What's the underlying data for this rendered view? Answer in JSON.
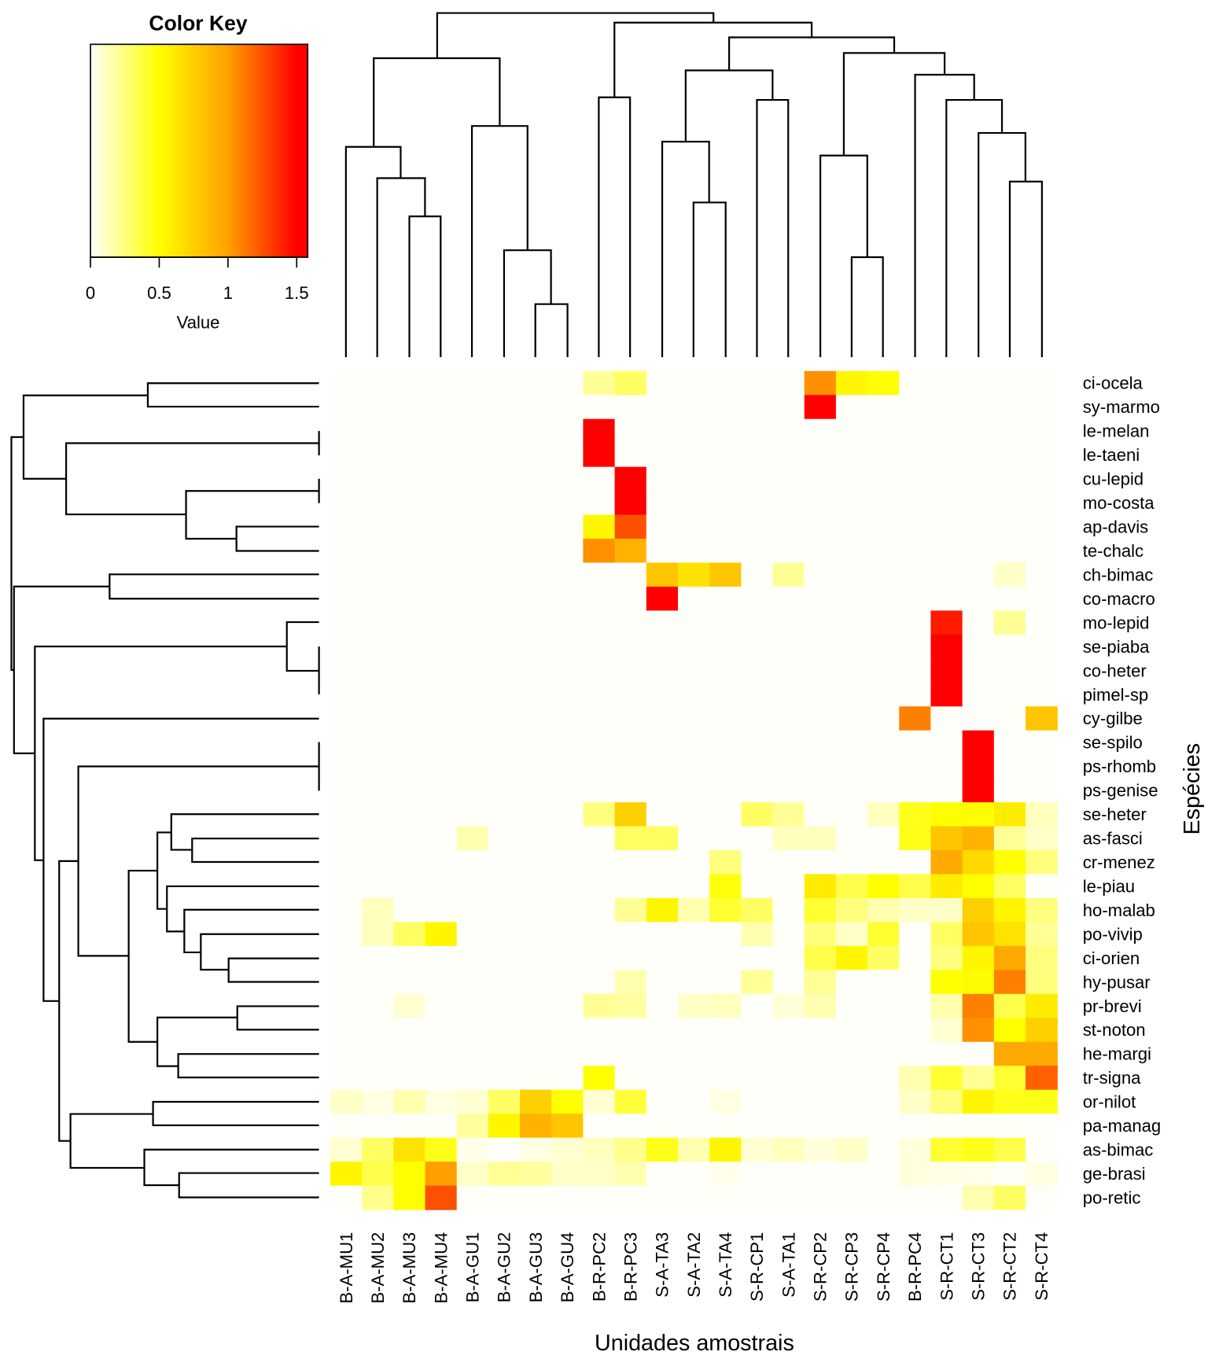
{
  "chart_data": {
    "type": "heatmap",
    "title": "",
    "xlabel": "Unidades amostrais",
    "ylabel": "Espécies",
    "columns": [
      "B-A-MU1",
      "B-A-MU2",
      "B-A-MU3",
      "B-A-MU4",
      "B-A-GU1",
      "B-A-GU2",
      "B-A-GU3",
      "B-A-GU4",
      "B-R-PC2",
      "B-R-PC3",
      "S-A-TA3",
      "S-A-TA2",
      "S-A-TA4",
      "S-R-CP1",
      "S-A-TA1",
      "S-R-CP2",
      "S-R-CP3",
      "S-R-CP4",
      "B-R-PC4",
      "S-R-CT1",
      "S-R-CT3",
      "S-R-CT2",
      "S-R-CT4"
    ],
    "rows": [
      "ci-ocela",
      "sy-marmo",
      "le-melan",
      "le-taeni",
      "cu-lepid",
      "mo-costa",
      "ap-davis",
      "te-chalc",
      "ch-bimac",
      "co-macro",
      "mo-lepid",
      "se-piaba",
      "co-heter",
      "pimel-sp",
      "cy-gilbe",
      "se-spilo",
      "ps-rhomb",
      "ps-genise",
      "se-heter",
      "as-fasci",
      "cr-menez",
      "le-piau",
      "ho-malab",
      "po-vivip",
      "ci-orien",
      "hy-pusar",
      "pr-brevi",
      "st-noton",
      "he-margi",
      "tr-signa",
      "or-nilot",
      "pa-manag",
      "as-bimac",
      "ge-brasi",
      "po-retic"
    ],
    "values": [
      [
        0,
        0,
        0,
        0,
        0,
        0,
        0,
        0,
        0.2,
        0.3,
        0,
        0,
        0,
        0,
        0,
        1.05,
        0.55,
        0.5,
        0,
        0,
        0,
        0,
        0
      ],
      [
        0,
        0,
        0,
        0,
        0,
        0,
        0,
        0,
        0,
        0,
        0,
        0,
        0,
        0,
        0,
        1.5,
        0,
        0,
        0,
        0,
        0,
        0,
        0
      ],
      [
        0,
        0,
        0,
        0,
        0,
        0,
        0,
        0,
        1.5,
        0,
        0,
        0,
        0,
        0,
        0,
        0,
        0,
        0,
        0,
        0,
        0,
        0,
        0
      ],
      [
        0,
        0,
        0,
        0,
        0,
        0,
        0,
        0,
        1.5,
        0,
        0,
        0,
        0,
        0,
        0,
        0,
        0,
        0,
        0,
        0,
        0,
        0,
        0
      ],
      [
        0,
        0,
        0,
        0,
        0,
        0,
        0,
        0,
        0,
        1.5,
        0,
        0,
        0,
        0,
        0,
        0,
        0,
        0,
        0,
        0,
        0,
        0,
        0
      ],
      [
        0,
        0,
        0,
        0,
        0,
        0,
        0,
        0,
        0,
        1.5,
        0,
        0,
        0,
        0,
        0,
        0,
        0,
        0,
        0,
        0,
        0,
        0,
        0
      ],
      [
        0,
        0,
        0,
        0,
        0,
        0,
        0,
        0,
        0.55,
        1.25,
        0,
        0,
        0,
        0,
        0,
        0,
        0,
        0,
        0,
        0,
        0,
        0,
        0
      ],
      [
        0,
        0,
        0,
        0,
        0,
        0,
        0,
        0,
        1.05,
        0.9,
        0,
        0,
        0,
        0,
        0,
        0,
        0,
        0,
        0,
        0,
        0,
        0,
        0
      ],
      [
        0,
        0,
        0,
        0,
        0,
        0,
        0,
        0,
        0,
        0,
        0.8,
        0.65,
        0.8,
        0,
        0.2,
        0,
        0,
        0,
        0,
        0,
        0,
        0.1,
        0
      ],
      [
        0,
        0,
        0,
        0,
        0,
        0,
        0,
        0,
        0,
        0,
        1.5,
        0,
        0,
        0,
        0,
        0,
        0,
        0,
        0,
        0,
        0,
        0,
        0
      ],
      [
        0,
        0,
        0,
        0,
        0,
        0,
        0,
        0,
        0,
        0,
        0,
        0,
        0,
        0,
        0,
        0,
        0,
        0,
        0,
        1.42,
        0,
        0.2,
        0
      ],
      [
        0,
        0,
        0,
        0,
        0,
        0,
        0,
        0,
        0,
        0,
        0,
        0,
        0,
        0,
        0,
        0,
        0,
        0,
        0,
        1.5,
        0,
        0,
        0
      ],
      [
        0,
        0,
        0,
        0,
        0,
        0,
        0,
        0,
        0,
        0,
        0,
        0,
        0,
        0,
        0,
        0,
        0,
        0,
        0,
        1.5,
        0,
        0,
        0
      ],
      [
        0,
        0,
        0,
        0,
        0,
        0,
        0,
        0,
        0,
        0,
        0,
        0,
        0,
        0,
        0,
        0,
        0,
        0,
        0,
        1.5,
        0,
        0,
        0
      ],
      [
        0,
        0,
        0,
        0,
        0,
        0,
        0,
        0,
        0,
        0,
        0,
        0,
        0,
        0,
        0,
        0,
        0,
        0,
        1.1,
        0,
        0,
        0,
        0.8
      ],
      [
        0,
        0,
        0,
        0,
        0,
        0,
        0,
        0,
        0,
        0,
        0,
        0,
        0,
        0,
        0,
        0,
        0,
        0,
        0,
        0,
        1.5,
        0,
        0
      ],
      [
        0,
        0,
        0,
        0,
        0,
        0,
        0,
        0,
        0,
        0,
        0,
        0,
        0,
        0,
        0,
        0,
        0,
        0,
        0,
        0,
        1.5,
        0,
        0
      ],
      [
        0,
        0,
        0,
        0,
        0,
        0,
        0,
        0,
        0,
        0,
        0,
        0,
        0,
        0,
        0,
        0,
        0,
        0,
        0,
        0,
        1.5,
        0,
        0
      ],
      [
        0,
        0,
        0,
        0,
        0,
        0,
        0,
        0,
        0.25,
        0.75,
        0,
        0,
        0,
        0.3,
        0.2,
        0,
        0,
        0.12,
        0.45,
        0.5,
        0.5,
        0.6,
        0.12
      ],
      [
        0,
        0,
        0,
        0,
        0.15,
        0,
        0,
        0,
        0,
        0.3,
        0.3,
        0,
        0,
        0,
        0.12,
        0.12,
        0,
        0,
        0.45,
        0.8,
        0.9,
        0.2,
        0.1
      ],
      [
        0,
        0,
        0,
        0,
        0,
        0,
        0,
        0,
        0,
        0,
        0,
        0,
        0.25,
        0,
        0,
        0,
        0,
        0,
        0,
        0.95,
        0.7,
        0.5,
        0.25
      ],
      [
        0,
        0,
        0,
        0,
        0,
        0,
        0,
        0,
        0,
        0,
        0,
        0,
        0.48,
        0,
        0,
        0.6,
        0.35,
        0.5,
        0.35,
        0.6,
        0.5,
        0.3,
        0
      ],
      [
        0,
        0.12,
        0,
        0,
        0,
        0,
        0,
        0,
        0,
        0.2,
        0.55,
        0.15,
        0.4,
        0.3,
        0,
        0.4,
        0.25,
        0.15,
        0.1,
        0.1,
        0.75,
        0.55,
        0.25
      ],
      [
        0,
        0.12,
        0.3,
        0.55,
        0,
        0,
        0,
        0,
        0,
        0,
        0,
        0,
        0,
        0.15,
        0,
        0.25,
        0.1,
        0.4,
        0,
        0.3,
        0.8,
        0.65,
        0.2
      ],
      [
        0,
        0,
        0,
        0,
        0,
        0,
        0,
        0,
        0,
        0,
        0,
        0,
        0,
        0,
        0,
        0.35,
        0.55,
        0.3,
        0,
        0.25,
        0.55,
        0.95,
        0.25
      ],
      [
        0,
        0,
        0,
        0,
        0,
        0,
        0,
        0,
        0,
        0.15,
        0,
        0,
        0,
        0.2,
        0,
        0.2,
        0,
        0,
        0,
        0.5,
        0.52,
        1.1,
        0.25
      ],
      [
        0,
        0,
        0.08,
        0,
        0,
        0,
        0,
        0,
        0.2,
        0.18,
        0,
        0.1,
        0.12,
        0,
        0.07,
        0.15,
        0,
        0,
        0,
        0.15,
        1.1,
        0.35,
        0.6
      ],
      [
        0,
        0,
        0,
        0,
        0,
        0,
        0,
        0,
        0,
        0,
        0,
        0,
        0,
        0,
        0,
        0,
        0,
        0,
        0,
        0.08,
        1.05,
        0.5,
        0.75
      ],
      [
        0,
        0,
        0,
        0,
        0,
        0,
        0,
        0,
        0,
        0,
        0,
        0,
        0,
        0,
        0,
        0,
        0,
        0,
        0,
        0,
        0,
        0.95,
        0.95
      ],
      [
        0,
        0,
        0,
        0,
        0,
        0,
        0,
        0,
        0.5,
        0,
        0,
        0,
        0,
        0,
        0,
        0,
        0,
        0,
        0.15,
        0.4,
        0.2,
        0.4,
        1.2
      ],
      [
        0.1,
        0.05,
        0.15,
        0.05,
        0.08,
        0.3,
        0.75,
        0.5,
        0.08,
        0.38,
        0,
        0,
        0.05,
        0,
        0,
        0,
        0,
        0,
        0.1,
        0.25,
        0.55,
        0.45,
        0.45
      ],
      [
        0,
        0,
        0,
        0,
        0.18,
        0.55,
        0.9,
        0.8,
        0,
        0,
        0,
        0,
        0,
        0,
        0,
        0,
        0,
        0,
        0,
        0,
        0,
        0,
        0
      ],
      [
        0.08,
        0.3,
        0.65,
        0.45,
        0.03,
        0,
        0.05,
        0.08,
        0.12,
        0.22,
        0.45,
        0.15,
        0.55,
        0.08,
        0.12,
        0.06,
        0.1,
        0,
        0.06,
        0.4,
        0.45,
        0.35,
        0
      ],
      [
        0.55,
        0.35,
        0.5,
        1.0,
        0.1,
        0.2,
        0.18,
        0.1,
        0.1,
        0.15,
        0,
        0,
        0.03,
        0,
        0,
        0,
        0,
        0,
        0.06,
        0.04,
        0.03,
        0,
        0.05
      ],
      [
        0,
        0.22,
        0.5,
        1.25,
        0,
        0,
        0,
        0,
        0,
        0,
        0,
        0,
        0,
        0,
        0,
        0,
        0,
        0,
        0,
        0,
        0.15,
        0.3,
        0
      ]
    ],
    "color_scale": {
      "colors": [
        "#FFFFFA",
        "#FFFF00",
        "#FFA000",
        "#FF0000"
      ],
      "stops": [
        0,
        0.5,
        1.0,
        1.5
      ]
    },
    "color_key": {
      "title": "Color Key",
      "label": "Value",
      "range": [
        0,
        1.58
      ],
      "ticks": [
        0,
        0.5,
        1,
        1.5
      ],
      "tick_labels": [
        "0",
        "0.5",
        "1",
        "1.5"
      ]
    },
    "dendrograms": {
      "rows": true,
      "columns": true
    }
  }
}
